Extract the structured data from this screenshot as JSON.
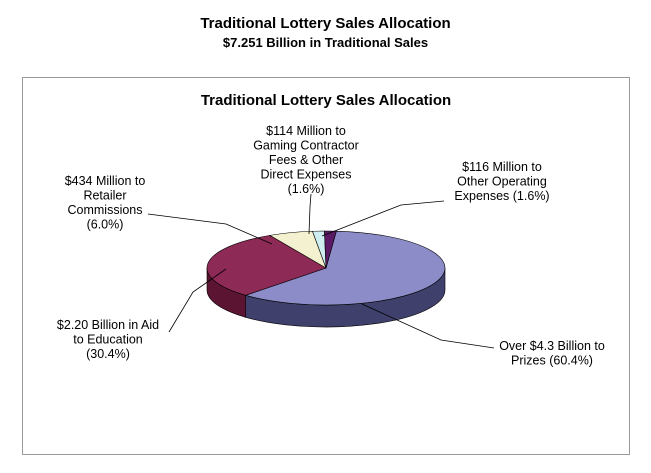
{
  "page": {
    "title": "Traditional Lottery Sales Allocation",
    "subtitle": "$7.251 Billion in Traditional Sales"
  },
  "chart_data": {
    "type": "pie",
    "three_d": true,
    "title": "Traditional Lottery Sales Allocation",
    "slices": [
      {
        "key": "prizes",
        "percent": 60.4,
        "color": "#8c8cc8",
        "side_color": "#40406c",
        "label_lines": [
          "Over $4.3 Billion to",
          "Prizes (60.4%)"
        ]
      },
      {
        "key": "education",
        "percent": 30.4,
        "color": "#8e2a56",
        "side_color": "#5c1433",
        "label_lines": [
          "$2.20 Billion in Aid",
          "to Education",
          "(30.4%)"
        ]
      },
      {
        "key": "retailer",
        "percent": 6.0,
        "color": "#f3f1cf",
        "side_color": "#b5b394",
        "label_lines": [
          "$434 Million to",
          "Retailer",
          "Commissions",
          "(6.0%)"
        ]
      },
      {
        "key": "contractor",
        "percent": 1.6,
        "color": "#cfeef2",
        "side_color": "#8fb0b4",
        "label_lines": [
          "$114 Million to",
          "Gaming Contractor",
          "Fees & Other",
          "Direct Expenses",
          "(1.6%)"
        ]
      },
      {
        "key": "operating",
        "percent": 1.6,
        "color": "#5a1a66",
        "side_color": "#360c3e",
        "label_lines": [
          "$116 Million to",
          "Other Operating",
          "Expenses (1.6%)"
        ]
      }
    ]
  }
}
